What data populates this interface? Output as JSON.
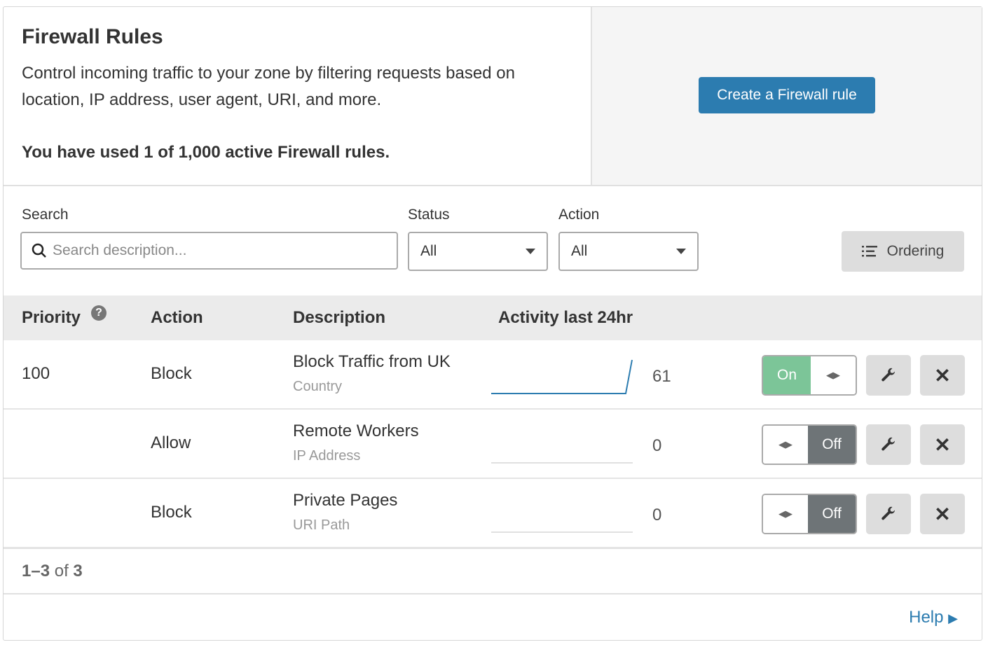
{
  "header": {
    "title": "Firewall Rules",
    "description": "Control incoming traffic to your zone by filtering requests based on location, IP address, user agent, URI, and more.",
    "usage": "You have used 1 of 1,000 active Firewall rules.",
    "create_button": "Create a Firewall rule"
  },
  "filters": {
    "search_label": "Search",
    "search_placeholder": "Search description...",
    "status_label": "Status",
    "status_value": "All",
    "action_label": "Action",
    "action_value": "All",
    "ordering_label": "Ordering"
  },
  "table": {
    "columns": [
      "Priority",
      "Action",
      "Description",
      "Activity last 24hr"
    ],
    "rows": [
      {
        "priority": "100",
        "action": "Block",
        "description": "Block Traffic from UK",
        "type": "Country",
        "count": "61",
        "enabled": true,
        "toggle": "On"
      },
      {
        "priority": "",
        "action": "Allow",
        "description": "Remote Workers",
        "type": "IP Address",
        "count": "0",
        "enabled": false,
        "toggle": "Off"
      },
      {
        "priority": "",
        "action": "Block",
        "description": "Private Pages",
        "type": "URI Path",
        "count": "0",
        "enabled": false,
        "toggle": "Off"
      }
    ]
  },
  "pagination": {
    "range": "1–3",
    "of": "of",
    "total": "3"
  },
  "help": "Help",
  "colors": {
    "primary": "#2c7cb0",
    "on": "#7cc598",
    "off": "#6e7477"
  }
}
